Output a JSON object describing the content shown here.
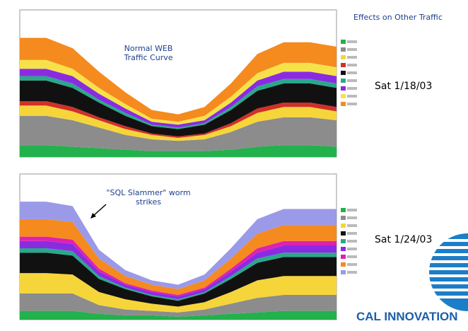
{
  "heading": "Effects on Other Traffic",
  "notes": [
    "Normal WEB Traffic Curve",
    "Sat 1/18/03",
    "\"SQL Slammer\" worm strikes",
    "Sat 1/24/03"
  ],
  "logo": "CAL INNOVATION",
  "chart_data": [
    {
      "type": "stacked-area",
      "ylim": [
        0,
        100
      ],
      "categories": [
        null,
        null,
        null,
        null,
        null,
        null,
        null,
        null,
        null,
        null,
        null,
        null,
        null
      ],
      "series": [
        {
          "color": "#22b14c",
          "values": [
            8,
            8,
            7,
            6,
            5,
            4,
            4,
            4,
            5,
            7,
            8,
            8,
            7
          ]
        },
        {
          "color": "#8c8c8c",
          "values": [
            20,
            20,
            18,
            14,
            10,
            8,
            7,
            8,
            12,
            17,
            19,
            19,
            18
          ]
        },
        {
          "color": "#f5d53a",
          "values": [
            7,
            7,
            6,
            5,
            4,
            3,
            2,
            3,
            4,
            6,
            7,
            7,
            6
          ]
        },
        {
          "color": "#d0302a",
          "values": [
            3,
            3,
            3,
            2,
            2,
            1,
            1,
            1,
            2,
            3,
            3,
            3,
            3
          ]
        },
        {
          "color": "#111111",
          "values": [
            14,
            14,
            13,
            10,
            7,
            5,
            5,
            6,
            9,
            12,
            13,
            13,
            13
          ]
        },
        {
          "color": "#2aa88a",
          "values": [
            3,
            3,
            3,
            2,
            2,
            1,
            1,
            1,
            2,
            3,
            3,
            3,
            3
          ]
        },
        {
          "color": "#8a2be2",
          "values": [
            5,
            5,
            5,
            4,
            3,
            2,
            2,
            2,
            3,
            4,
            5,
            5,
            5
          ]
        },
        {
          "color": "#f7e14a",
          "values": [
            6,
            6,
            5,
            4,
            3,
            2,
            2,
            3,
            4,
            5,
            6,
            6,
            6
          ]
        },
        {
          "color": "#f58a1f",
          "values": [
            15,
            15,
            14,
            11,
            8,
            6,
            5,
            6,
            9,
            13,
            14,
            14,
            14
          ]
        }
      ]
    },
    {
      "type": "stacked-area",
      "ylim": [
        0,
        100
      ],
      "categories": [
        null,
        null,
        null,
        null,
        null,
        null,
        null,
        null,
        null,
        null,
        null,
        null,
        null
      ],
      "series": [
        {
          "color": "#22b14c",
          "values": [
            6,
            6,
            6,
            4,
            3,
            3,
            2,
            3,
            4,
            5,
            6,
            6,
            6
          ]
        },
        {
          "color": "#8c8c8c",
          "values": [
            12,
            12,
            12,
            6,
            4,
            3,
            3,
            4,
            7,
            10,
            11,
            11,
            11
          ]
        },
        {
          "color": "#f5d53a",
          "values": [
            14,
            14,
            13,
            9,
            7,
            5,
            4,
            5,
            8,
            12,
            13,
            13,
            13
          ]
        },
        {
          "color": "#111111",
          "values": [
            14,
            14,
            13,
            9,
            7,
            5,
            4,
            6,
            9,
            12,
            13,
            13,
            13
          ]
        },
        {
          "color": "#2aa88a",
          "values": [
            3,
            3,
            3,
            2,
            1,
            1,
            1,
            1,
            2,
            3,
            3,
            3,
            3
          ]
        },
        {
          "color": "#8a2be2",
          "values": [
            5,
            5,
            5,
            3,
            2,
            2,
            2,
            2,
            3,
            4,
            5,
            5,
            5
          ]
        },
        {
          "color": "#e020b0",
          "values": [
            3,
            3,
            3,
            2,
            1,
            1,
            1,
            1,
            2,
            3,
            3,
            3,
            3
          ]
        },
        {
          "color": "#f58a1f",
          "values": [
            12,
            12,
            12,
            7,
            5,
            4,
            4,
            5,
            7,
            10,
            11,
            11,
            11
          ]
        },
        {
          "color": "#9a9ae8",
          "values": [
            12,
            12,
            11,
            6,
            4,
            3,
            3,
            4,
            7,
            10,
            11,
            11,
            11
          ]
        }
      ]
    }
  ]
}
